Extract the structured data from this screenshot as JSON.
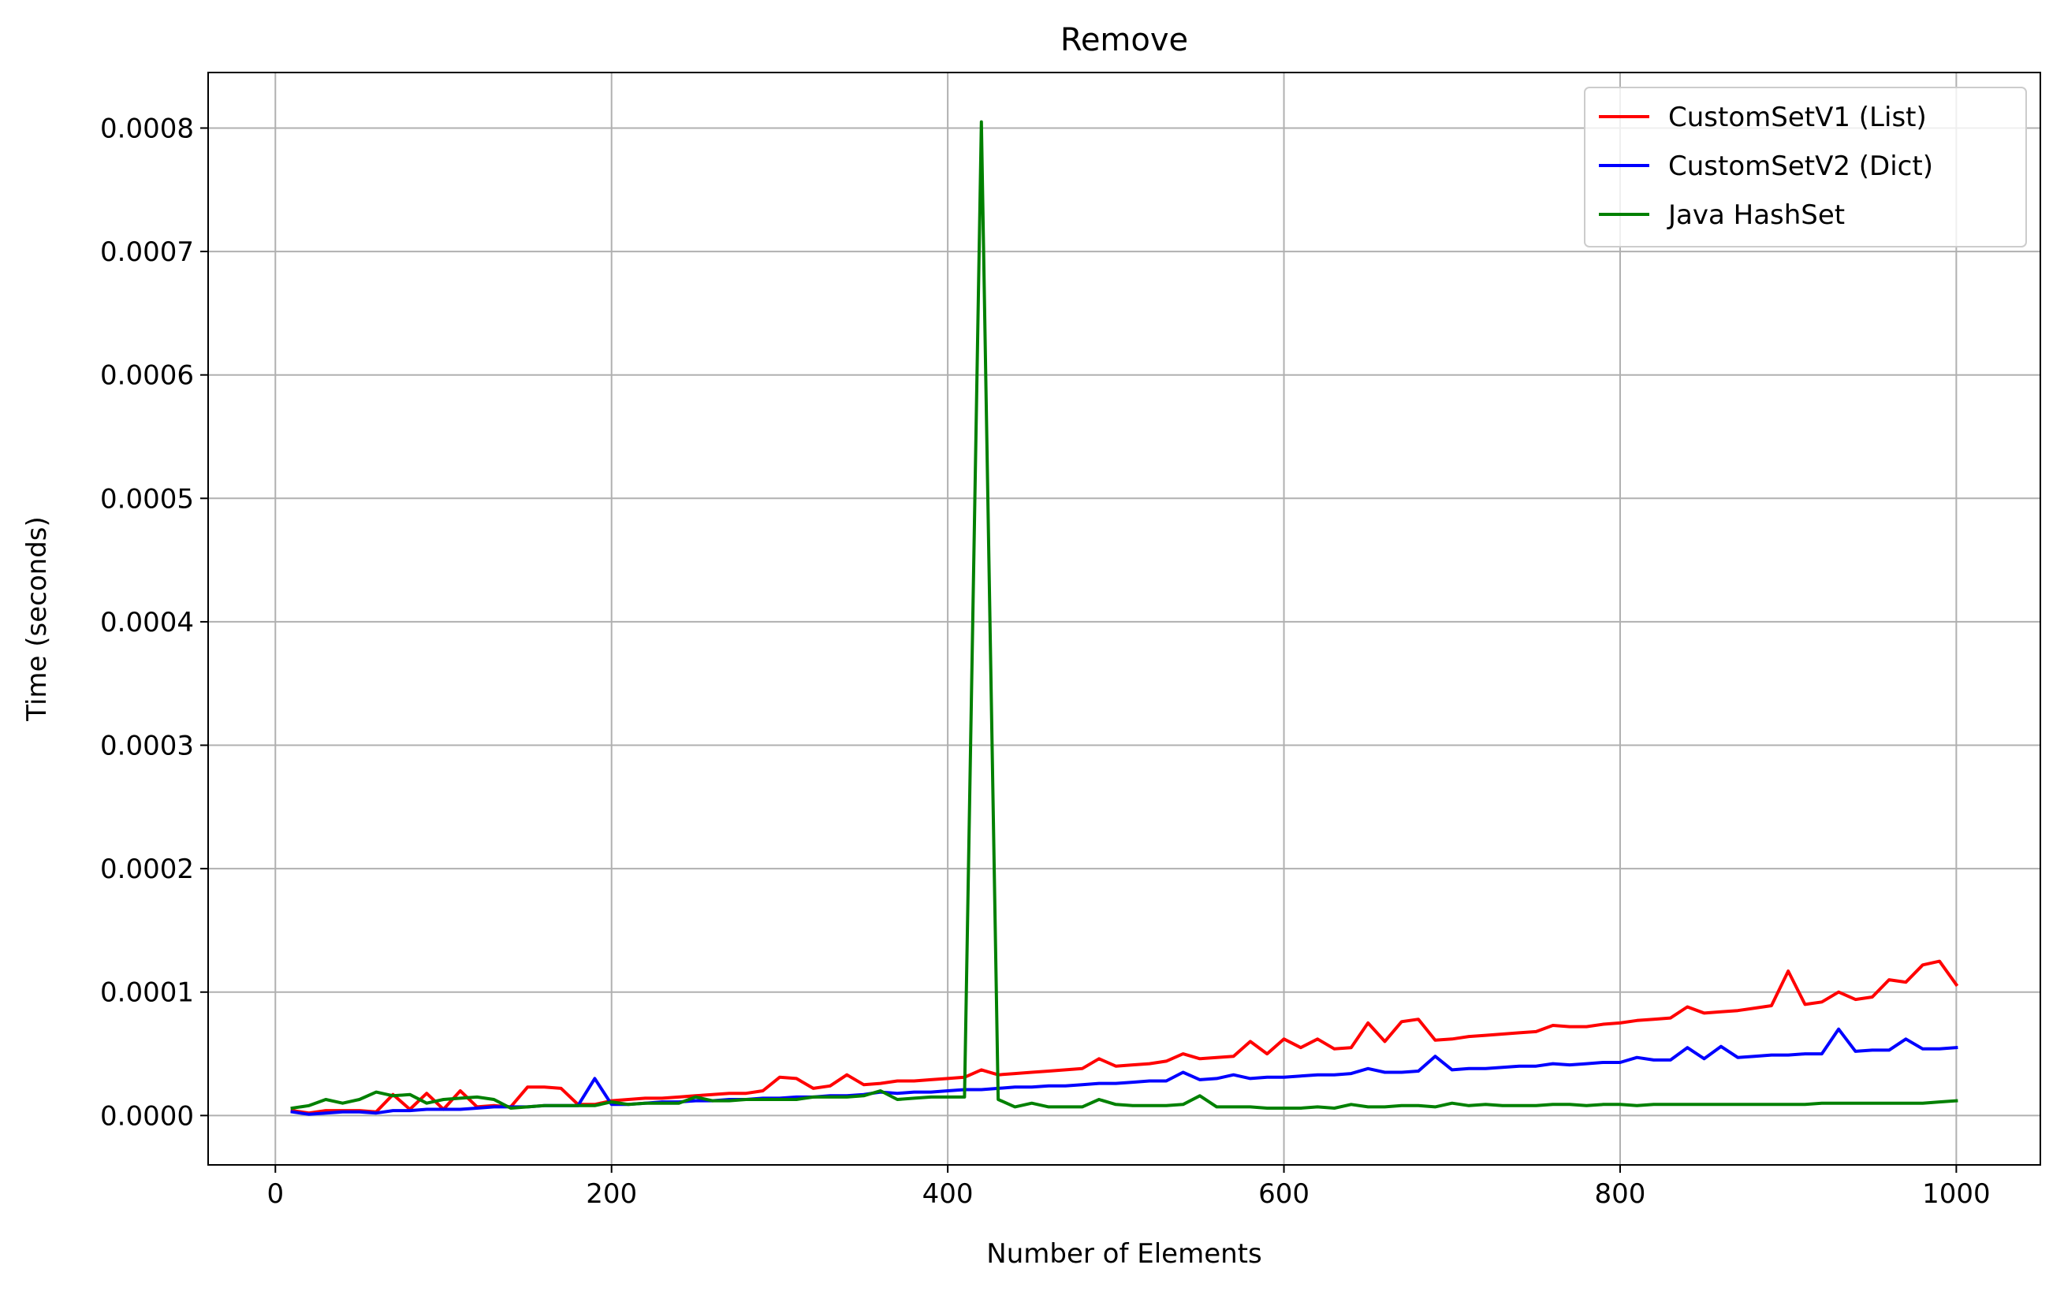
{
  "chart_data": {
    "type": "line",
    "title": "Remove",
    "xlabel": "Number of Elements",
    "ylabel": "Time (seconds)",
    "xlim": [
      -40,
      1050
    ],
    "ylim": [
      -4e-05,
      0.000845
    ],
    "grid": true,
    "legend_position": "upper right",
    "x_ticks": [
      0,
      200,
      400,
      600,
      800,
      1000
    ],
    "x_tick_labels": [
      "0",
      "200",
      "400",
      "600",
      "800",
      "1000"
    ],
    "y_ticks": [
      0,
      0.0001,
      0.0002,
      0.0003,
      0.0004,
      0.0005,
      0.0006,
      0.0007,
      0.0008
    ],
    "y_tick_labels": [
      "0.0000",
      "0.0001",
      "0.0002",
      "0.0003",
      "0.0004",
      "0.0005",
      "0.0006",
      "0.0007",
      "0.0008"
    ],
    "x": [
      10,
      20,
      30,
      40,
      50,
      60,
      70,
      80,
      90,
      100,
      110,
      120,
      130,
      140,
      150,
      160,
      170,
      180,
      190,
      200,
      210,
      220,
      230,
      240,
      250,
      260,
      270,
      280,
      290,
      300,
      310,
      320,
      330,
      340,
      350,
      360,
      370,
      380,
      390,
      400,
      410,
      420,
      430,
      440,
      450,
      460,
      470,
      480,
      490,
      500,
      510,
      520,
      530,
      540,
      550,
      560,
      570,
      580,
      590,
      600,
      610,
      620,
      630,
      640,
      650,
      660,
      670,
      680,
      690,
      700,
      710,
      720,
      730,
      740,
      750,
      760,
      770,
      780,
      790,
      800,
      810,
      820,
      830,
      840,
      850,
      860,
      870,
      880,
      890,
      900,
      910,
      920,
      930,
      940,
      950,
      960,
      970,
      980,
      990,
      1000
    ],
    "series": [
      {
        "name": "CustomSetV1 (List)",
        "color": "#ff0000",
        "values": [
          4e-06,
          2e-06,
          4e-06,
          4e-06,
          4e-06,
          3e-06,
          1.7e-05,
          5e-06,
          1.8e-05,
          5e-06,
          2e-05,
          7e-06,
          8e-06,
          7e-06,
          2.3e-05,
          2.3e-05,
          2.2e-05,
          9e-06,
          9e-06,
          1.2e-05,
          1.3e-05,
          1.4e-05,
          1.4e-05,
          1.5e-05,
          1.6e-05,
          1.7e-05,
          1.8e-05,
          1.8e-05,
          2e-05,
          3.1e-05,
          3e-05,
          2.2e-05,
          2.4e-05,
          3.3e-05,
          2.5e-05,
          2.6e-05,
          2.8e-05,
          2.8e-05,
          2.9e-05,
          3e-05,
          3.1e-05,
          3.7e-05,
          3.3e-05,
          3.4e-05,
          3.5e-05,
          3.6e-05,
          3.7e-05,
          3.8e-05,
          4.6e-05,
          4e-05,
          4.1e-05,
          4.2e-05,
          4.4e-05,
          5e-05,
          4.6e-05,
          4.7e-05,
          4.8e-05,
          6e-05,
          5e-05,
          6.2e-05,
          5.5e-05,
          6.2e-05,
          5.4e-05,
          5.5e-05,
          7.5e-05,
          6e-05,
          7.6e-05,
          7.8e-05,
          6.1e-05,
          6.2e-05,
          6.4e-05,
          6.5e-05,
          6.6e-05,
          6.7e-05,
          6.8e-05,
          7.3e-05,
          7.2e-05,
          7.2e-05,
          7.4e-05,
          7.5e-05,
          7.7e-05,
          7.8e-05,
          7.9e-05,
          8.8e-05,
          8.3e-05,
          8.4e-05,
          8.5e-05,
          8.7e-05,
          8.9e-05,
          0.000117,
          9e-05,
          9.2e-05,
          0.0001,
          9.4e-05,
          9.6e-05,
          0.00011,
          0.000108,
          0.000122,
          0.000125,
          0.000106
        ]
      },
      {
        "name": "CustomSetV2 (Dict)",
        "color": "#0000ff",
        "values": [
          3e-06,
          1e-06,
          2e-06,
          3e-06,
          3e-06,
          2e-06,
          4e-06,
          4e-06,
          5e-06,
          5e-06,
          5e-06,
          6e-06,
          7e-06,
          7e-06,
          7e-06,
          8e-06,
          8e-06,
          8e-06,
          3e-05,
          9e-06,
          9e-06,
          1e-05,
          1.1e-05,
          1.1e-05,
          1.2e-05,
          1.2e-05,
          1.3e-05,
          1.3e-05,
          1.4e-05,
          1.4e-05,
          1.5e-05,
          1.5e-05,
          1.6e-05,
          1.6e-05,
          1.7e-05,
          1.9e-05,
          1.8e-05,
          1.9e-05,
          1.9e-05,
          2e-05,
          2.1e-05,
          2.1e-05,
          2.2e-05,
          2.3e-05,
          2.3e-05,
          2.4e-05,
          2.4e-05,
          2.5e-05,
          2.6e-05,
          2.6e-05,
          2.7e-05,
          2.8e-05,
          2.8e-05,
          3.5e-05,
          2.9e-05,
          3e-05,
          3.3e-05,
          3e-05,
          3.1e-05,
          3.1e-05,
          3.2e-05,
          3.3e-05,
          3.3e-05,
          3.4e-05,
          3.8e-05,
          3.5e-05,
          3.5e-05,
          3.6e-05,
          4.8e-05,
          3.7e-05,
          3.8e-05,
          3.8e-05,
          3.9e-05,
          4e-05,
          4e-05,
          4.2e-05,
          4.1e-05,
          4.2e-05,
          4.3e-05,
          4.3e-05,
          4.7e-05,
          4.5e-05,
          4.5e-05,
          5.5e-05,
          4.6e-05,
          5.6e-05,
          4.7e-05,
          4.8e-05,
          4.9e-05,
          4.9e-05,
          5e-05,
          5e-05,
          7e-05,
          5.2e-05,
          5.3e-05,
          5.3e-05,
          6.2e-05,
          5.4e-05,
          5.4e-05,
          5.5e-05
        ]
      },
      {
        "name": "Java HashSet",
        "color": "#008000",
        "values": [
          6e-06,
          8e-06,
          1.3e-05,
          1e-05,
          1.3e-05,
          1.9e-05,
          1.6e-05,
          1.7e-05,
          1e-05,
          1.3e-05,
          1.4e-05,
          1.5e-05,
          1.3e-05,
          6e-06,
          7e-06,
          8e-06,
          8e-06,
          8e-06,
          8e-06,
          1.1e-05,
          9e-06,
          1e-05,
          1e-05,
          1e-05,
          1.5e-05,
          1.2e-05,
          1.2e-05,
          1.3e-05,
          1.3e-05,
          1.3e-05,
          1.3e-05,
          1.5e-05,
          1.5e-05,
          1.5e-05,
          1.6e-05,
          2e-05,
          1.3e-05,
          1.4e-05,
          1.5e-05,
          1.5e-05,
          1.5e-05,
          0.000805,
          1.3e-05,
          7e-06,
          1e-05,
          7e-06,
          7e-06,
          7e-06,
          1.3e-05,
          9e-06,
          8e-06,
          8e-06,
          8e-06,
          9e-06,
          1.6e-05,
          7e-06,
          7e-06,
          7e-06,
          6e-06,
          6e-06,
          6e-06,
          7e-06,
          6e-06,
          9e-06,
          7e-06,
          7e-06,
          8e-06,
          8e-06,
          7e-06,
          1e-05,
          8e-06,
          9e-06,
          8e-06,
          8e-06,
          8e-06,
          9e-06,
          9e-06,
          8e-06,
          9e-06,
          9e-06,
          8e-06,
          9e-06,
          9e-06,
          9e-06,
          9e-06,
          9e-06,
          9e-06,
          9e-06,
          9e-06,
          9e-06,
          9e-06,
          1e-05,
          1e-05,
          1e-05,
          1e-05,
          1e-05,
          1e-05,
          1e-05,
          1.1e-05,
          1.2e-05
        ]
      }
    ]
  }
}
